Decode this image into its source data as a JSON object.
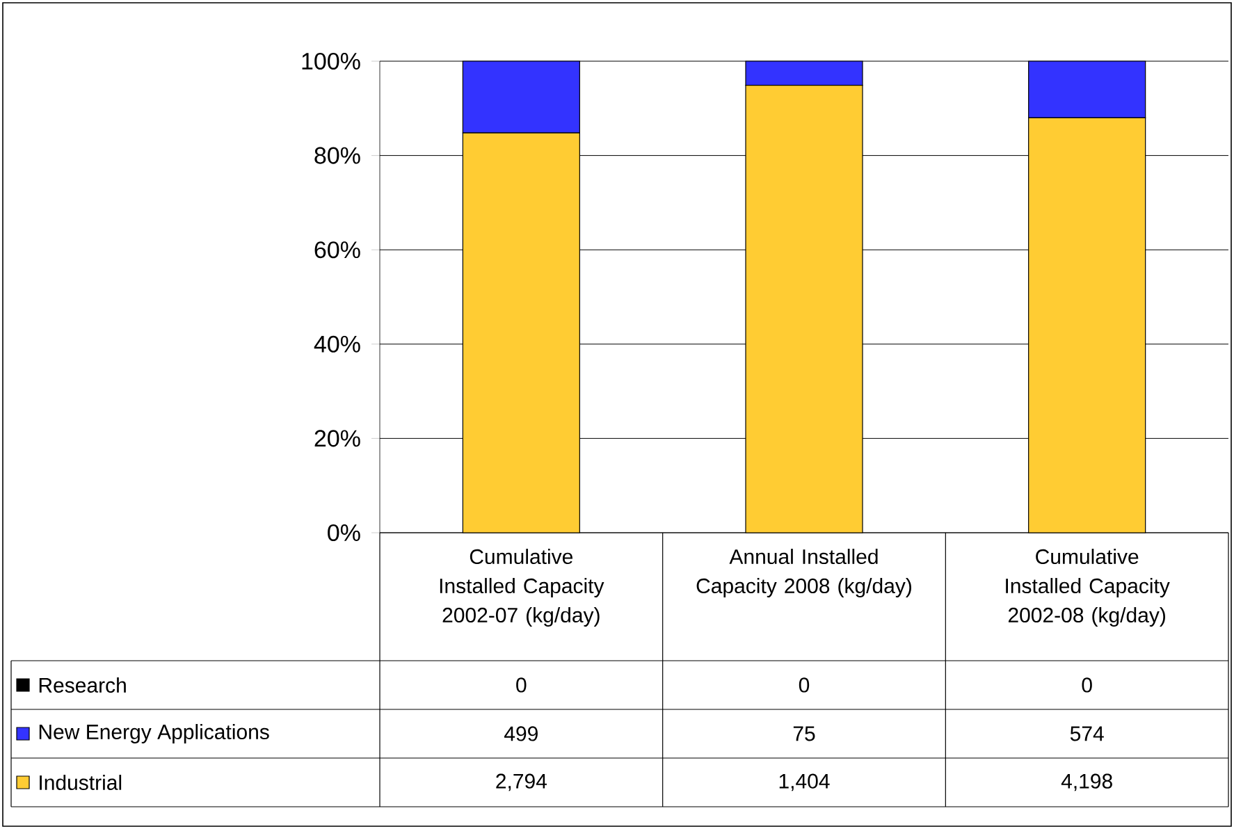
{
  "chart_data": {
    "type": "bar",
    "stacked": true,
    "categories": [
      "Cumulative Installed Capacity 2002-07 (kg/day)",
      "Annual Installed Capacity 2008 (kg/day)",
      "Cumulative Installed Capacity 2002-08 (kg/day)"
    ],
    "series": [
      {
        "name": "Industrial",
        "color": "#ffcc33",
        "values": [
          84.8,
          94.9,
          88.0
        ]
      },
      {
        "name": "New Energy Applications",
        "color": "#3333ff",
        "values": [
          15.2,
          5.1,
          12.0
        ]
      },
      {
        "name": "Research",
        "color": "#000000",
        "values": [
          0,
          0,
          0
        ]
      }
    ],
    "annotations": [
      "0",
      "0",
      "0",
      "499",
      "75",
      "574",
      "2,794",
      "1,404",
      "4,198"
    ],
    "ylim": [
      0,
      100
    ],
    "yticks": [
      {
        "value": 0,
        "label": "0%"
      },
      {
        "value": 20,
        "label": "20%"
      },
      {
        "value": 40,
        "label": "40%"
      },
      {
        "value": 60,
        "label": "60%"
      },
      {
        "value": 80,
        "label": "80%"
      },
      {
        "value": 100,
        "label": "100%"
      }
    ],
    "grid": "y",
    "legend": "bottom"
  }
}
